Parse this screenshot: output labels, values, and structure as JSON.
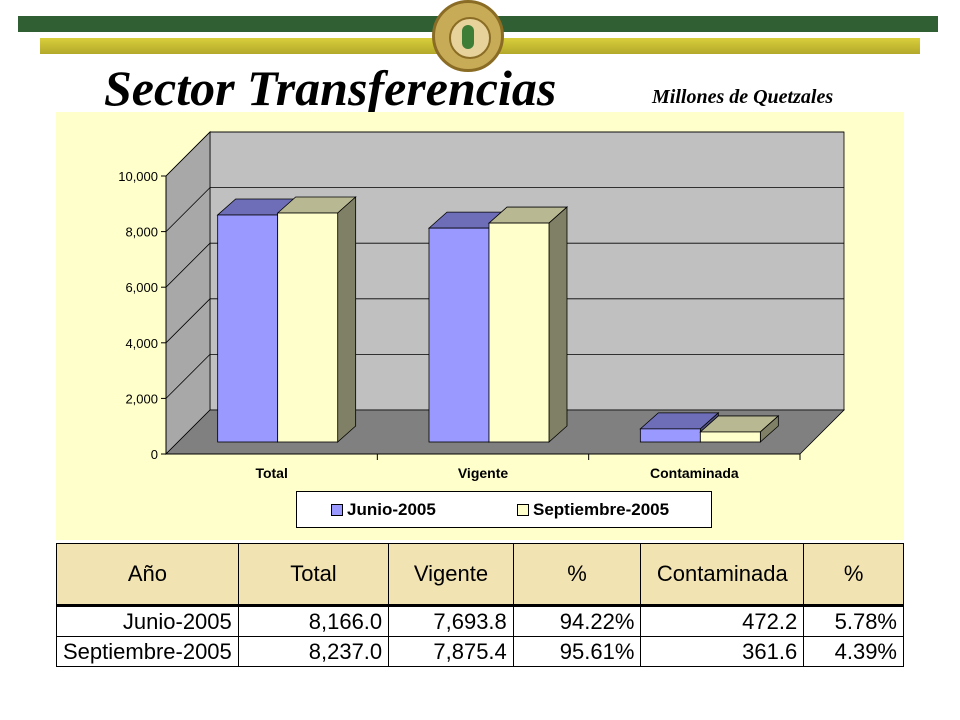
{
  "header": {
    "title": "Sector Transferencias",
    "subtitle": "Millones de Quetzales",
    "seal_icon": "superintendencia-seal-icon",
    "band_color": "#2f5f33",
    "bar_color": "#d9cf3c"
  },
  "chart_data": {
    "type": "bar",
    "categories": [
      "Total",
      "Vigente",
      "Contaminada"
    ],
    "series": [
      {
        "name": "Junio-2005",
        "values": [
          8166.0,
          7693.8,
          472.2
        ],
        "color": "#9999ff"
      },
      {
        "name": "Septiembre-2005",
        "values": [
          8237.0,
          7875.4,
          361.6
        ],
        "color": "#ffffcc"
      }
    ],
    "ylim": [
      0,
      10000
    ],
    "yticks": [
      "0",
      "2,000",
      "4,000",
      "6,000",
      "8,000",
      "10,000"
    ],
    "grid": true,
    "legend_position": "bottom",
    "background": "#ffffcc",
    "wall_color": "#c0c0c0",
    "floor_color": "#808080"
  },
  "table": {
    "headers": [
      "Año",
      "Total",
      "Vigente",
      "%",
      "Contaminada",
      "%"
    ],
    "rows": [
      [
        "Junio-2005",
        "8,166.0",
        "7,693.8",
        "94.22%",
        "472.2",
        "5.78%"
      ],
      [
        "Septiembre-2005",
        "8,237.0",
        "7,875.4",
        "95.61%",
        "361.6",
        "4.39%"
      ]
    ]
  }
}
